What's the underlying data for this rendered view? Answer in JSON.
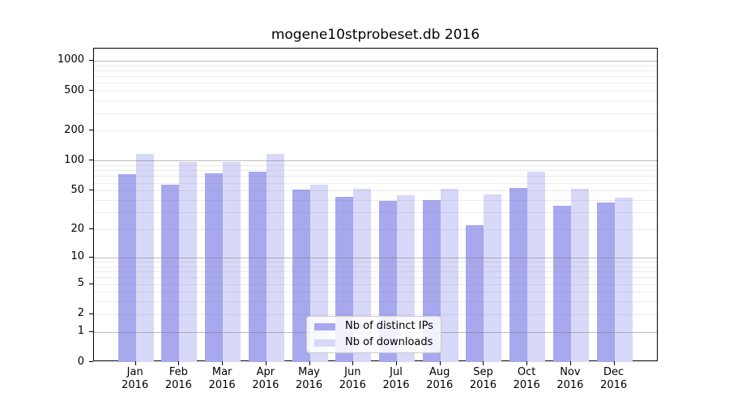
{
  "title": "mogene10stprobeset.db 2016",
  "colors": {
    "distinct_ips": "#a8a8ee",
    "downloads": "#d8d8f8",
    "grid_major": "#c0c0c0",
    "grid_minor": "#e9e9e9",
    "spine": "#000000"
  },
  "legend": {
    "items": [
      {
        "label": "Nb of distinct IPs",
        "series": "distinct_ips"
      },
      {
        "label": "Nb of downloads",
        "series": "downloads"
      }
    ],
    "position": "lower center"
  },
  "chart_data": {
    "type": "bar",
    "title": "mogene10stprobeset.db 2016",
    "categories": [
      "Jan 2016",
      "Feb 2016",
      "Mar 2016",
      "Apr 2016",
      "May 2016",
      "Jun 2016",
      "Jul 2016",
      "Aug 2016",
      "Sep 2016",
      "Oct 2016",
      "Nov 2016",
      "Dec 2016"
    ],
    "series": [
      {
        "name": "Nb of distinct IPs",
        "color": "#a8a8ee",
        "values": [
          73,
          57,
          74,
          77,
          51,
          43,
          39,
          40,
          22,
          53,
          35,
          38
        ]
      },
      {
        "name": "Nb of downloads",
        "color": "#d8d8f8",
        "values": [
          118,
          98,
          98,
          117,
          57,
          52,
          45,
          52,
          46,
          78,
          52,
          42
        ]
      }
    ],
    "xlabel": "",
    "ylabel": "",
    "yscale": "log1p",
    "yticks": [
      0,
      1,
      2,
      5,
      10,
      20,
      50,
      100,
      200,
      500,
      1000
    ],
    "yticks_minor": [
      2,
      3,
      4,
      5,
      6,
      7,
      8,
      9,
      20,
      30,
      40,
      50,
      60,
      70,
      80,
      90,
      200,
      300,
      400,
      500,
      600,
      700,
      800,
      900
    ],
    "ylim": [
      0,
      1320
    ],
    "grid": true,
    "legend_position": "lower center"
  }
}
